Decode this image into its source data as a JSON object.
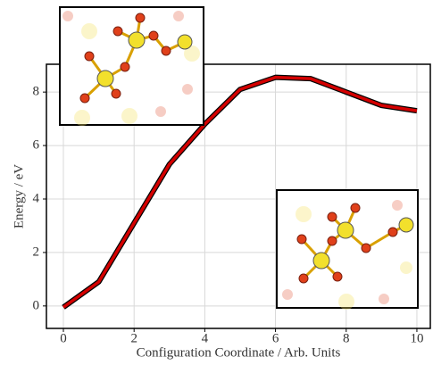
{
  "chart_data": {
    "type": "line",
    "x_label": "Configuration Coordinate / Arb. Units",
    "y_label": "Energy / eV",
    "series": [
      {
        "color": "#d40000",
        "x": [
          0,
          1,
          2,
          3,
          4,
          5,
          6,
          7,
          8,
          9,
          10
        ],
        "values": [
          -0.05,
          0.9,
          3.1,
          5.3,
          6.8,
          8.1,
          8.55,
          8.5,
          8.0,
          7.5,
          7.3
        ]
      }
    ],
    "xlim": [
      -0.48,
      10.38
    ],
    "ylim": [
      -0.84,
      9.04
    ],
    "xticks": [
      0,
      2,
      4,
      6,
      8,
      10
    ],
    "yticks": [
      0,
      2,
      4,
      6,
      8
    ],
    "grid": true
  }
}
